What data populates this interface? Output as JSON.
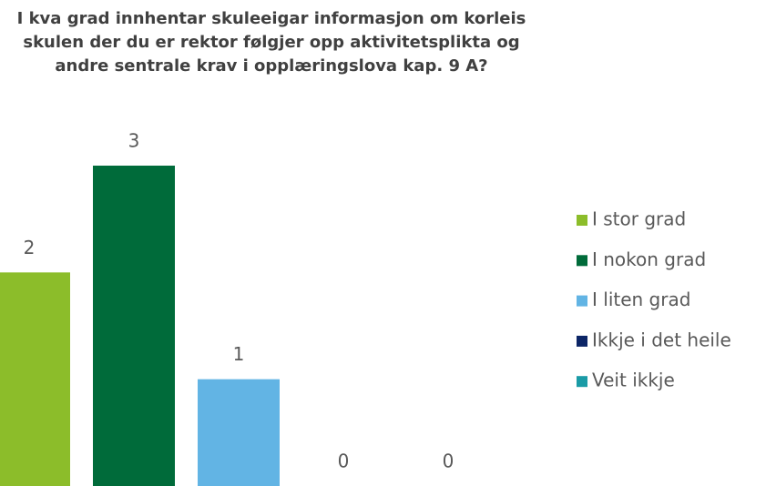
{
  "chart_data": {
    "type": "bar",
    "title": "I kva grad innhentar skuleeigar informasjon om korleis skulen der du er rektor følgjer opp aktivitetsplikta og andre sentrale krav i opplæringslova kap. 9 A?",
    "series": [
      {
        "name": "I stor grad",
        "color": "#8cbd2a",
        "values": [
          2
        ]
      },
      {
        "name": "I nokon grad",
        "color": "#006b3a",
        "values": [
          3
        ]
      },
      {
        "name": "I liten grad",
        "color": "#62b4e4",
        "values": [
          1
        ]
      },
      {
        "name": "Ikkje i det heile",
        "color": "#0c2566",
        "values": [
          0
        ]
      },
      {
        "name": "Veit ikkje",
        "color": "#1a9ba6",
        "values": [
          0
        ]
      }
    ],
    "ylim": [
      0,
      3
    ],
    "legend": "right"
  }
}
